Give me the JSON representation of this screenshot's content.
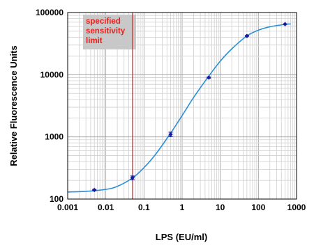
{
  "chart_data": {
    "type": "line",
    "xlabel": "LPS (EU/ml)",
    "ylabel": "Relative Fluorescence Units",
    "xscale": "log",
    "yscale": "log",
    "xlim": [
      0.001,
      1000
    ],
    "ylim": [
      100,
      100000
    ],
    "grid": true,
    "x_ticks": [
      "0.001",
      "0.01",
      "0.1",
      "1",
      "10",
      "100",
      "1000"
    ],
    "y_ticks": [
      "100",
      "1000",
      "10000",
      "100000"
    ],
    "series": [
      {
        "type": "scatter",
        "x": [
          0.005,
          0.05,
          0.5,
          5,
          50,
          500
        ],
        "y": [
          140,
          220,
          1100,
          9000,
          42000,
          65000
        ],
        "error_low": [
          137,
          205,
          1010,
          8800,
          41500,
          64500
        ],
        "error_high": [
          143,
          235,
          1190,
          9200,
          42500,
          65500
        ],
        "color": "#1a1a9c"
      },
      {
        "type": "line",
        "x": [
          0.001,
          0.003,
          0.01,
          0.02,
          0.05,
          0.1,
          0.2,
          0.5,
          1,
          2,
          5,
          10,
          20,
          50,
          100,
          200,
          500,
          700
        ],
        "y": [
          130,
          133,
          143,
          160,
          218,
          320,
          520,
          1150,
          2200,
          4300,
          9500,
          16500,
          26000,
          42000,
          52000,
          59000,
          64500,
          65500
        ],
        "color": "#2b8fd8"
      }
    ],
    "reference_line": {
      "x": 0.05,
      "color": "#e8201c"
    },
    "annotation": {
      "lines": [
        "specified",
        "sensitivity",
        "limit"
      ],
      "box_color": "#c8c8c8",
      "text_color": "#e8201c"
    }
  }
}
